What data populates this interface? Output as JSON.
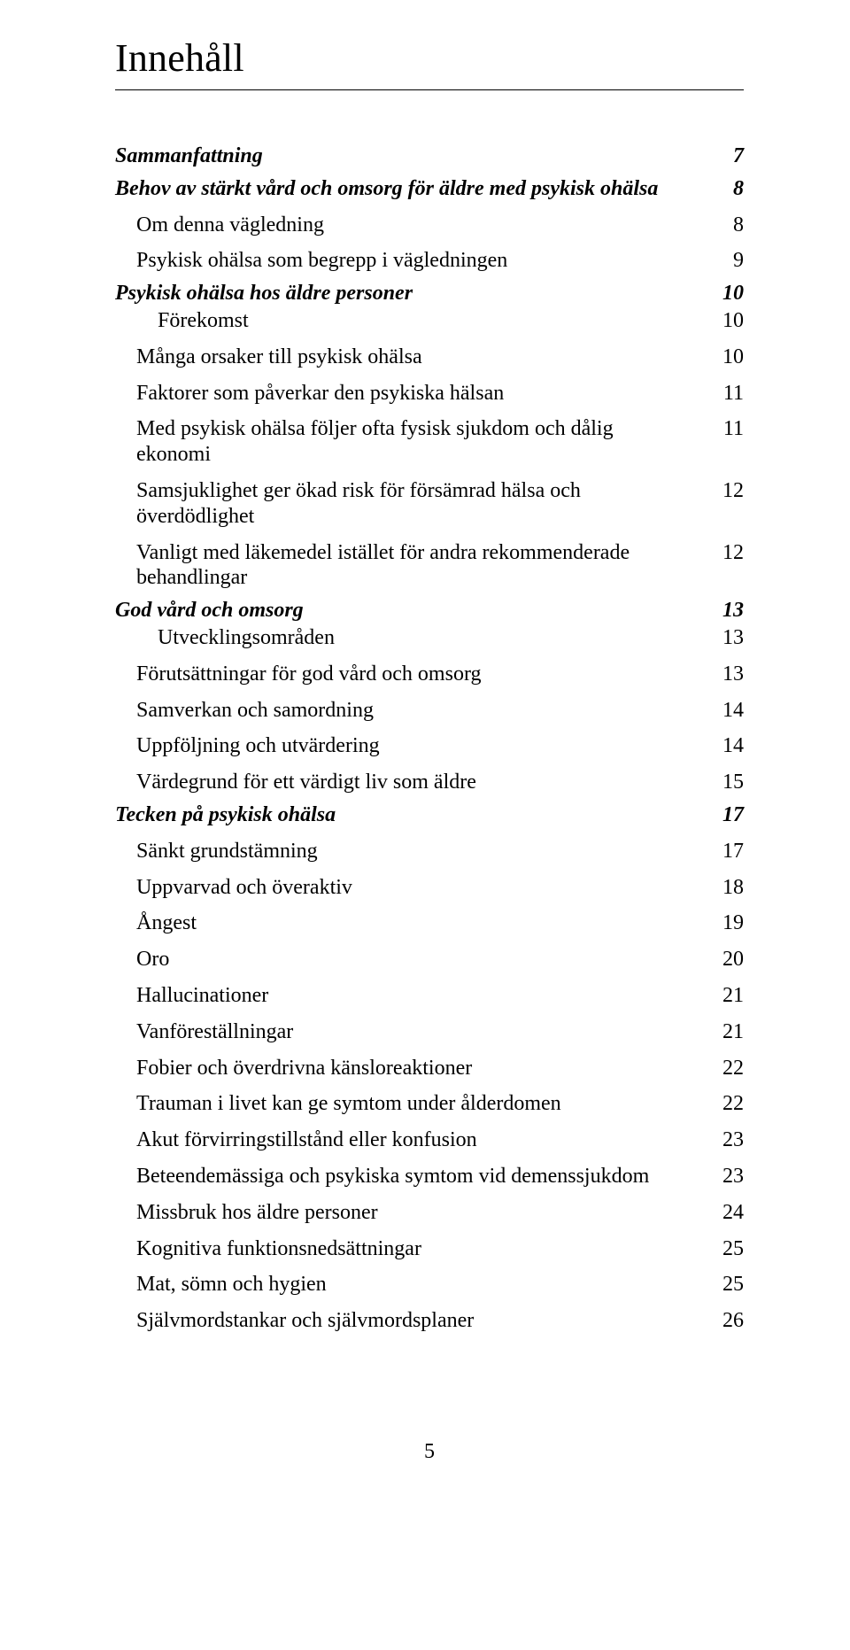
{
  "title": "Innehåll",
  "footer_page_number": "5",
  "colors": {
    "text": "#000000",
    "background": "#ffffff",
    "rule": "#000000"
  },
  "typography": {
    "title_font_family": "Times New Roman",
    "title_font_size_pt": 32,
    "body_font_family": "Times New Roman",
    "body_font_size_pt": 18,
    "level0_style": "italic bold",
    "level1_style": "normal",
    "level2_style": "normal"
  },
  "toc_entries": [
    {
      "label": "Sammanfattning",
      "page": "7",
      "level": 0
    },
    {
      "label": "Behov av stärkt vård och omsorg för äldre med psykisk ohälsa",
      "page": "8",
      "level": 0
    },
    {
      "label": "Om denna vägledning",
      "page": "8",
      "level": 1
    },
    {
      "label": "Psykisk ohälsa som begrepp i vägledningen",
      "page": "9",
      "level": 1
    },
    {
      "label": "Psykisk ohälsa hos äldre personer",
      "page": "10",
      "level": 0
    },
    {
      "label": "Förekomst",
      "page": "10",
      "level": 2
    },
    {
      "label": "Många orsaker till psykisk ohälsa",
      "page": "10",
      "level": 1
    },
    {
      "label": "Faktorer som påverkar den psykiska hälsan",
      "page": "11",
      "level": 1
    },
    {
      "label": "Med psykisk ohälsa följer ofta fysisk sjukdom och dålig ekonomi",
      "page": "11",
      "level": 1
    },
    {
      "label": "Samsjuklighet ger ökad risk för försämrad hälsa och överdödlighet",
      "page": "12",
      "level": 1
    },
    {
      "label": "Vanligt med läkemedel istället för andra rekommenderade behandlingar",
      "page": "12",
      "level": 1
    },
    {
      "label": "God vård och omsorg",
      "page": "13",
      "level": 0
    },
    {
      "label": "Utvecklingsområden",
      "page": "13",
      "level": 2
    },
    {
      "label": "Förutsättningar för god vård och omsorg",
      "page": "13",
      "level": 1
    },
    {
      "label": "Samverkan och samordning",
      "page": "14",
      "level": 1
    },
    {
      "label": "Uppföljning och utvärdering",
      "page": "14",
      "level": 1
    },
    {
      "label": "Värdegrund för ett värdigt liv som äldre",
      "page": "15",
      "level": 1
    },
    {
      "label": "Tecken på psykisk ohälsa",
      "page": "17",
      "level": 0
    },
    {
      "label": "Sänkt grundstämning",
      "page": "17",
      "level": 1
    },
    {
      "label": "Uppvarvad och överaktiv",
      "page": "18",
      "level": 1
    },
    {
      "label": "Ångest",
      "page": "19",
      "level": 1
    },
    {
      "label": "Oro",
      "page": "20",
      "level": 1
    },
    {
      "label": "Hallucinationer",
      "page": "21",
      "level": 1
    },
    {
      "label": "Vanföreställningar",
      "page": "21",
      "level": 1
    },
    {
      "label": "Fobier och överdrivna känsloreaktioner",
      "page": "22",
      "level": 1
    },
    {
      "label": "Trauman i livet kan ge symtom under ålderdomen",
      "page": "22",
      "level": 1
    },
    {
      "label": "Akut förvirringstillstånd eller konfusion",
      "page": "23",
      "level": 1
    },
    {
      "label": "Beteendemässiga och psykiska symtom vid demenssjukdom",
      "page": "23",
      "level": 1
    },
    {
      "label": "Missbruk hos äldre personer",
      "page": "24",
      "level": 1
    },
    {
      "label": "Kognitiva funktionsnedsättningar",
      "page": "25",
      "level": 1
    },
    {
      "label": "Mat, sömn och hygien",
      "page": "25",
      "level": 1
    },
    {
      "label": "Självmordstankar och självmordsplaner",
      "page": "26",
      "level": 1
    }
  ]
}
